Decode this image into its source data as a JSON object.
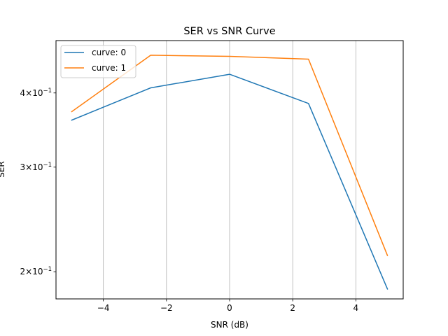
{
  "chart_data": {
    "type": "line",
    "title": "SER vs SNR Curve",
    "xlabel": "SNR (dB)",
    "ylabel": "SER",
    "yscale": "log",
    "xlim": [
      -5.5,
      5.5
    ],
    "ylim": [
      0.18,
      0.49
    ],
    "xticks": [
      -4,
      -2,
      0,
      2,
      4
    ],
    "xtick_labels": [
      "−4",
      "−2",
      "0",
      "2",
      "4"
    ],
    "yticks": [
      {
        "value": 0.4,
        "mantissa": "4",
        "exp": "−1"
      },
      {
        "value": 0.3,
        "mantissa": "3",
        "exp": "−1"
      },
      {
        "value": 0.2,
        "mantissa": "2",
        "exp": "−1"
      }
    ],
    "grid": "x-major",
    "legend_position": "upper-left",
    "x": [
      -5,
      -2.5,
      0,
      2.5,
      5
    ],
    "series": [
      {
        "name": "curve: 0",
        "color": "#1f77b4",
        "values": [
          0.36,
          0.408,
          0.43,
          0.384,
          0.187
        ]
      },
      {
        "name": "curve: 1",
        "color": "#ff7f0e",
        "values": [
          0.372,
          0.463,
          0.461,
          0.456,
          0.213
        ]
      }
    ]
  }
}
